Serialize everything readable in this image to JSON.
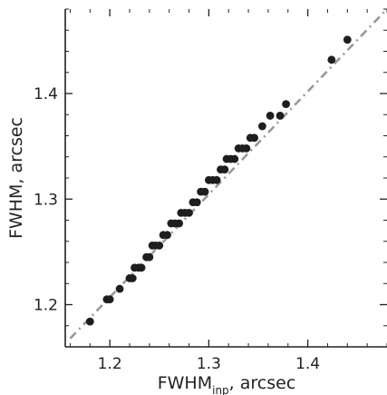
{
  "chart_data": {
    "type": "scatter",
    "title": "",
    "xlabel_main": "FWHM",
    "xlabel_sub": "inp",
    "xlabel_rest": ", arcsec",
    "ylabel": "FWHM, arcsec",
    "xlim": [
      1.155,
      1.48
    ],
    "ylim": [
      1.16,
      1.48
    ],
    "xticks": [
      1.2,
      1.3,
      1.4
    ],
    "xtick_labels": [
      "1.2",
      "1.3",
      "1.4"
    ],
    "yticks": [
      1.2,
      1.3,
      1.4
    ],
    "ytick_labels": [
      "1.2",
      "1.3",
      "1.4"
    ],
    "grid": false,
    "reference_line": {
      "style": "dash-dot",
      "color": "#999999",
      "from": [
        1.16,
        1.168
      ],
      "to": [
        1.48,
        1.48
      ]
    },
    "marker_color": "#1e1e1e",
    "points": [
      [
        1.18,
        1.184
      ],
      [
        1.197,
        1.205
      ],
      [
        1.2,
        1.205
      ],
      [
        1.21,
        1.215
      ],
      [
        1.22,
        1.225
      ],
      [
        1.223,
        1.225
      ],
      [
        1.225,
        1.235
      ],
      [
        1.229,
        1.235
      ],
      [
        1.232,
        1.235
      ],
      [
        1.237,
        1.245
      ],
      [
        1.24,
        1.245
      ],
      [
        1.243,
        1.256
      ],
      [
        1.246,
        1.256
      ],
      [
        1.25,
        1.256
      ],
      [
        1.254,
        1.266
      ],
      [
        1.258,
        1.266
      ],
      [
        1.262,
        1.277
      ],
      [
        1.266,
        1.277
      ],
      [
        1.27,
        1.277
      ],
      [
        1.272,
        1.287
      ],
      [
        1.276,
        1.287
      ],
      [
        1.28,
        1.287
      ],
      [
        1.284,
        1.297
      ],
      [
        1.288,
        1.297
      ],
      [
        1.292,
        1.307
      ],
      [
        1.296,
        1.307
      ],
      [
        1.3,
        1.318
      ],
      [
        1.304,
        1.318
      ],
      [
        1.308,
        1.318
      ],
      [
        1.312,
        1.328
      ],
      [
        1.316,
        1.328
      ],
      [
        1.318,
        1.338
      ],
      [
        1.322,
        1.338
      ],
      [
        1.326,
        1.338
      ],
      [
        1.33,
        1.348
      ],
      [
        1.334,
        1.348
      ],
      [
        1.338,
        1.348
      ],
      [
        1.342,
        1.358
      ],
      [
        1.346,
        1.358
      ],
      [
        1.354,
        1.369
      ],
      [
        1.362,
        1.379
      ],
      [
        1.372,
        1.379
      ],
      [
        1.378,
        1.39
      ],
      [
        1.424,
        1.432
      ],
      [
        1.44,
        1.451
      ]
    ]
  }
}
